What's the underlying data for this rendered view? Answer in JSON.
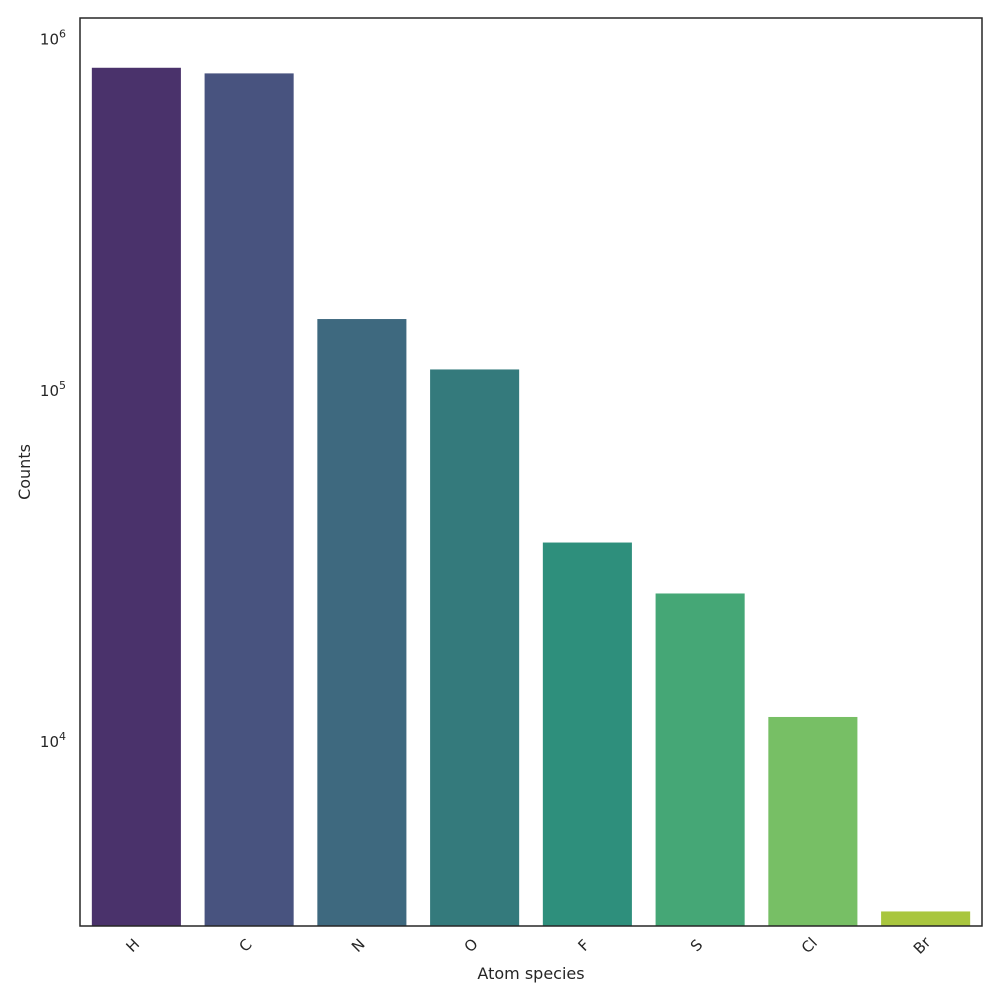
{
  "chart_data": {
    "type": "bar",
    "title": "",
    "xlabel": "Atom species",
    "ylabel": "Counts",
    "yscale": "log",
    "ylim": [
      3000,
      1150000
    ],
    "yticks": [
      {
        "value": 10000,
        "mantissa": "10",
        "exponent": "4"
      },
      {
        "value": 100000,
        "mantissa": "10",
        "exponent": "5"
      },
      {
        "value": 1000000,
        "mantissa": "10",
        "exponent": "6"
      }
    ],
    "categories": [
      "H",
      "C",
      "N",
      "O",
      "F",
      "S",
      "Cl",
      "Br"
    ],
    "values": [
      830000,
      800000,
      160000,
      115000,
      37000,
      26500,
      11800,
      3300
    ],
    "colors": [
      "#4a326b",
      "#48537f",
      "#3e697f",
      "#347a7c",
      "#2e8f7c",
      "#45a776",
      "#77bf65",
      "#a9c63e"
    ],
    "grid": false,
    "legend": "none"
  }
}
